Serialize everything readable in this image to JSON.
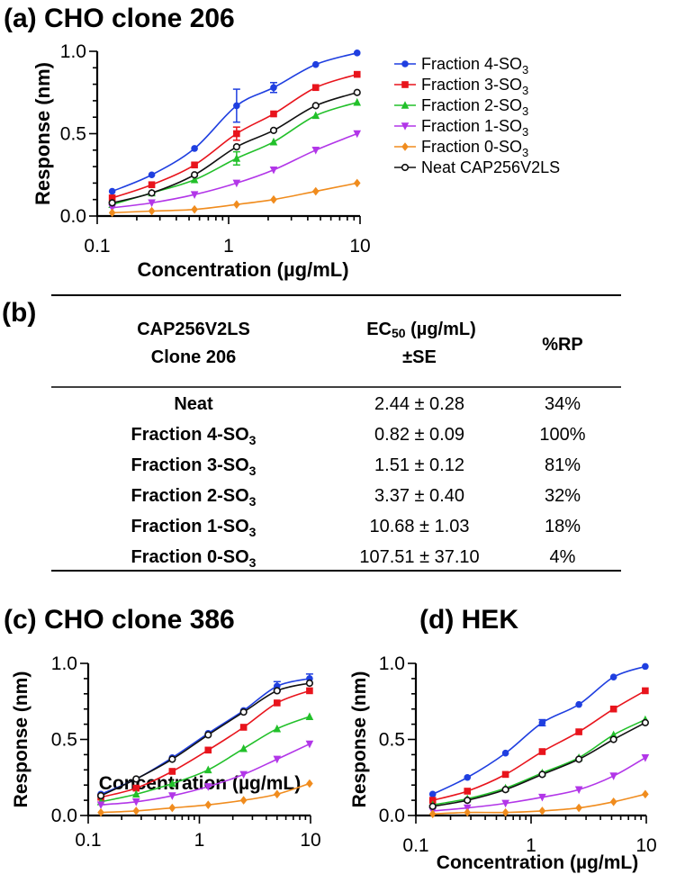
{
  "panel_a": {
    "label": "(a) CHO clone 206"
  },
  "panel_b": {
    "label": "(b)"
  },
  "panel_c": {
    "label": "(c) CHO clone 386"
  },
  "panel_d": {
    "label": "(d) HEK"
  },
  "colors": {
    "f4": "#1f3fe0",
    "f3": "#e8141c",
    "f2": "#22c02a",
    "f1": "#b236e8",
    "f0": "#f08c1e",
    "neat": "#111111"
  },
  "legend": [
    {
      "key": "f4",
      "base": "Fraction 4-SO",
      "sub": "3",
      "marker": "circle"
    },
    {
      "key": "f3",
      "base": "Fraction 3-SO",
      "sub": "3",
      "marker": "square"
    },
    {
      "key": "f2",
      "base": "Fraction 2-SO",
      "sub": "3",
      "marker": "triangle-up"
    },
    {
      "key": "f1",
      "base": "Fraction 1-SO",
      "sub": "3",
      "marker": "triangle-down"
    },
    {
      "key": "f0",
      "base": "Fraction 0-SO",
      "sub": "3",
      "marker": "diamond"
    },
    {
      "key": "neat",
      "base": "Neat CAP256V2LS",
      "sub": "",
      "marker": "open-circle"
    }
  ],
  "table": {
    "col1": [
      "CAP256V2LS",
      "Clone 206"
    ],
    "col2_main": "EC",
    "col2_sub": "50",
    "col2_rest": " (µg/mL)",
    "col2_line2": "±SE",
    "col3": "%RP",
    "rows": [
      {
        "name": "Neat",
        "sub": "",
        "ec50": "2.44 ± 0.28",
        "rp": "34%"
      },
      {
        "name": "Fraction 4-SO",
        "sub": "3",
        "ec50": "0.82 ± 0.09",
        "rp": "100%"
      },
      {
        "name": "Fraction 3-SO",
        "sub": "3",
        "ec50": "1.51 ± 0.12",
        "rp": "81%"
      },
      {
        "name": "Fraction 2-SO",
        "sub": "3",
        "ec50": "3.37 ± 0.40",
        "rp": "32%"
      },
      {
        "name": "Fraction 1-SO",
        "sub": "3",
        "ec50": "10.68 ± 1.03",
        "rp": "18%"
      },
      {
        "name": "Fraction 0-SO",
        "sub": "3",
        "ec50": "107.51 ± 37.10",
        "rp": "4%"
      }
    ]
  },
  "chart_data": [
    {
      "id": "a",
      "type": "scatter",
      "title": "CHO clone 206",
      "xlabel": "Concentration (µg/mL)",
      "ylabel": "Response (nm)",
      "xscale": "log",
      "xlim": [
        0.1,
        10
      ],
      "ylim": [
        0,
        1.0
      ],
      "xticks": [
        0.1,
        1,
        10
      ],
      "xtick_labels": [
        "0.1",
        "1",
        "10"
      ],
      "yticks": [
        0,
        0.5,
        1.0
      ],
      "ytick_labels": [
        "0.0",
        "0.5",
        "1.0"
      ],
      "x": [
        0.13,
        0.26,
        0.55,
        1.15,
        2.2,
        4.6,
        9.5
      ],
      "series": [
        {
          "key": "f4",
          "name": "Fraction 4-SO3",
          "values": [
            0.15,
            0.25,
            0.41,
            0.67,
            0.78,
            0.92,
            0.99
          ],
          "errors": [
            0,
            0,
            0,
            0.1,
            0.03,
            0,
            0
          ]
        },
        {
          "key": "f3",
          "name": "Fraction 3-SO3",
          "values": [
            0.11,
            0.19,
            0.31,
            0.5,
            0.62,
            0.78,
            0.86
          ],
          "errors": [
            0,
            0,
            0,
            0.04,
            0,
            0,
            0
          ]
        },
        {
          "key": "f2",
          "name": "Fraction 2-SO3",
          "values": [
            0.07,
            0.14,
            0.22,
            0.35,
            0.45,
            0.61,
            0.69
          ],
          "errors": [
            0,
            0,
            0,
            0.04,
            0,
            0,
            0
          ]
        },
        {
          "key": "f1",
          "name": "Fraction 1-SO3",
          "values": [
            0.05,
            0.08,
            0.13,
            0.2,
            0.28,
            0.4,
            0.5
          ],
          "errors": [
            0,
            0,
            0,
            0,
            0,
            0,
            0
          ]
        },
        {
          "key": "f0",
          "name": "Fraction 0-SO3",
          "values": [
            0.02,
            0.03,
            0.04,
            0.07,
            0.1,
            0.15,
            0.2
          ],
          "errors": [
            0,
            0,
            0,
            0,
            0,
            0,
            0
          ]
        },
        {
          "key": "neat",
          "name": "Neat CAP256V2LS",
          "values": [
            0.08,
            0.14,
            0.25,
            0.42,
            0.52,
            0.67,
            0.75
          ],
          "errors": [
            0,
            0,
            0,
            0,
            0,
            0,
            0
          ]
        }
      ]
    },
    {
      "id": "c",
      "type": "scatter",
      "title": "CHO clone 386",
      "xlabel": "Concentration (µg/mL)",
      "ylabel": "Response (nm)",
      "xscale": "log",
      "xlim": [
        0.1,
        10
      ],
      "ylim": [
        0,
        1.0
      ],
      "xticks": [
        0.1,
        1,
        10
      ],
      "xtick_labels": [
        "0.1",
        "1",
        "10"
      ],
      "yticks": [
        0,
        0.5,
        1.0
      ],
      "ytick_labels": [
        "0.0",
        "0.5",
        "1.0"
      ],
      "x": [
        0.13,
        0.27,
        0.57,
        1.2,
        2.5,
        5.0,
        9.8
      ],
      "series": [
        {
          "key": "f4",
          "name": "Fraction 4-SO3",
          "values": [
            0.14,
            0.24,
            0.38,
            0.54,
            0.69,
            0.85,
            0.9
          ],
          "errors": [
            0,
            0,
            0,
            0,
            0,
            0.03,
            0.03
          ]
        },
        {
          "key": "f3",
          "name": "Fraction 3-SO3",
          "values": [
            0.12,
            0.18,
            0.29,
            0.43,
            0.58,
            0.74,
            0.82
          ],
          "errors": [
            0,
            0,
            0,
            0,
            0,
            0,
            0
          ]
        },
        {
          "key": "f2",
          "name": "Fraction 2-SO3",
          "values": [
            0.09,
            0.14,
            0.21,
            0.3,
            0.44,
            0.57,
            0.65
          ],
          "errors": [
            0,
            0,
            0,
            0,
            0,
            0,
            0
          ]
        },
        {
          "key": "f1",
          "name": "Fraction 1-SO3",
          "values": [
            0.07,
            0.09,
            0.13,
            0.19,
            0.27,
            0.37,
            0.47
          ],
          "errors": [
            0,
            0,
            0,
            0,
            0,
            0,
            0
          ]
        },
        {
          "key": "f0",
          "name": "Fraction 0-SO3",
          "values": [
            0.02,
            0.03,
            0.05,
            0.07,
            0.1,
            0.14,
            0.21
          ],
          "errors": [
            0,
            0,
            0,
            0,
            0,
            0,
            0
          ]
        },
        {
          "key": "neat",
          "name": "Neat CAP256V2LS",
          "values": [
            0.13,
            0.24,
            0.37,
            0.53,
            0.68,
            0.82,
            0.87
          ],
          "errors": [
            0,
            0,
            0,
            0,
            0,
            0,
            0
          ]
        }
      ]
    },
    {
      "id": "d",
      "type": "scatter",
      "title": "HEK",
      "xlabel": "Concentration (µg/mL)",
      "ylabel": "Response (nm)",
      "xscale": "log",
      "xlim": [
        0.1,
        10
      ],
      "ylim": [
        0,
        1.0
      ],
      "xticks": [
        0.1,
        1,
        10
      ],
      "xtick_labels": [
        "0.1",
        "1",
        "10"
      ],
      "yticks": [
        0,
        0.5,
        1.0
      ],
      "ytick_labels": [
        "0.0",
        "0.5",
        "1.0"
      ],
      "x": [
        0.14,
        0.28,
        0.6,
        1.25,
        2.6,
        5.2,
        9.8
      ],
      "series": [
        {
          "key": "f4",
          "name": "Fraction 4-SO3",
          "values": [
            0.14,
            0.25,
            0.41,
            0.61,
            0.73,
            0.91,
            0.98
          ],
          "errors": [
            0,
            0,
            0,
            0.02,
            0,
            0,
            0
          ]
        },
        {
          "key": "f3",
          "name": "Fraction 3-SO3",
          "values": [
            0.1,
            0.16,
            0.27,
            0.42,
            0.55,
            0.7,
            0.82
          ],
          "errors": [
            0,
            0,
            0,
            0,
            0,
            0,
            0
          ]
        },
        {
          "key": "f2",
          "name": "Fraction 2-SO3",
          "values": [
            0.07,
            0.11,
            0.18,
            0.28,
            0.38,
            0.53,
            0.63
          ],
          "errors": [
            0,
            0,
            0,
            0,
            0,
            0,
            0
          ]
        },
        {
          "key": "f1",
          "name": "Fraction 1-SO3",
          "values": [
            0.03,
            0.05,
            0.08,
            0.12,
            0.17,
            0.26,
            0.38
          ],
          "errors": [
            0,
            0,
            0,
            0,
            0,
            0,
            0
          ]
        },
        {
          "key": "f0",
          "name": "Fraction 0-SO3",
          "values": [
            0.01,
            0.02,
            0.02,
            0.03,
            0.05,
            0.09,
            0.14
          ],
          "errors": [
            0,
            0,
            0,
            0,
            0,
            0,
            0
          ]
        },
        {
          "key": "neat",
          "name": "Neat CAP256V2LS",
          "values": [
            0.06,
            0.1,
            0.17,
            0.27,
            0.37,
            0.5,
            0.61
          ],
          "errors": [
            0,
            0,
            0,
            0,
            0,
            0,
            0
          ]
        }
      ]
    }
  ]
}
